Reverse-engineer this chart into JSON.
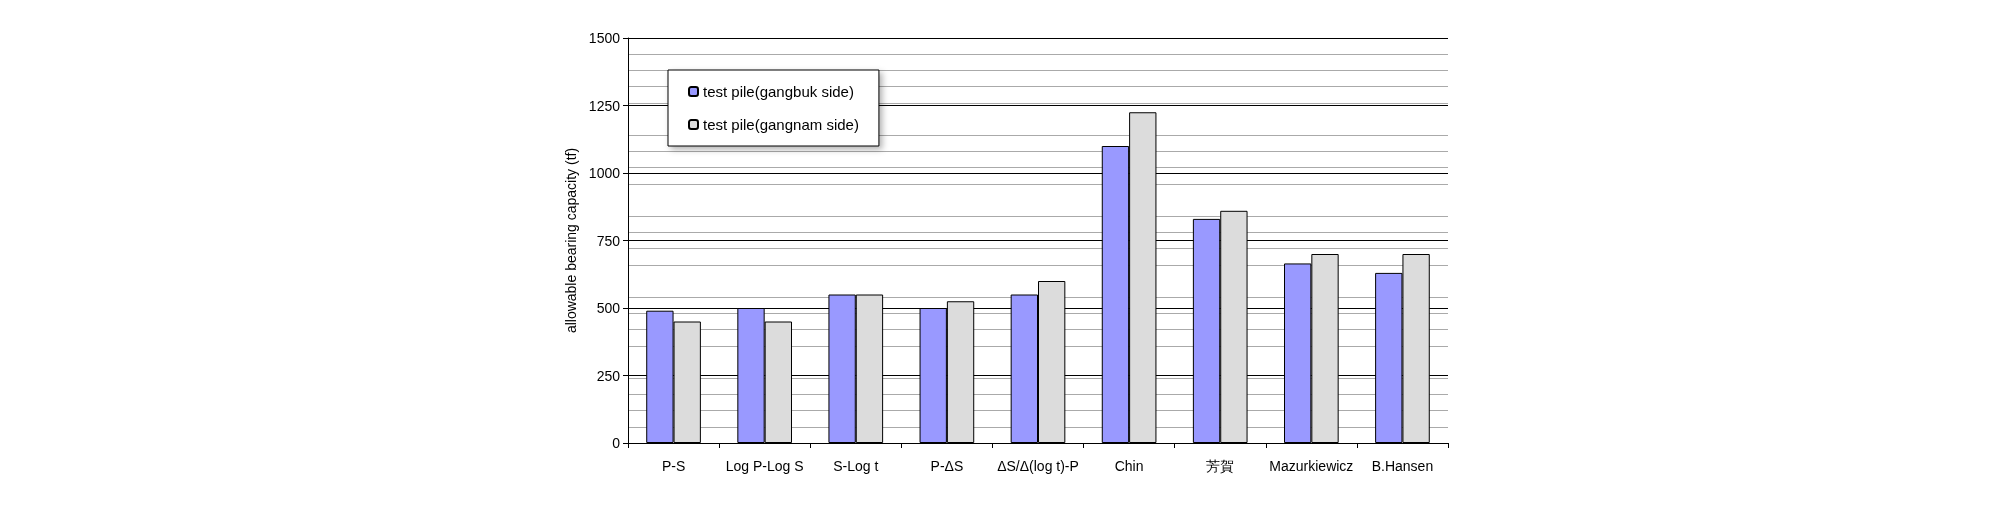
{
  "chart_data": {
    "type": "bar",
    "ylabel": "allowable bearing capacity (tf)",
    "categories": [
      "P-S",
      "Log P-Log S",
      "S-Log t",
      "P-ΔS",
      "ΔS/Δ(log t)-P",
      "Chin",
      "芳賀",
      "Mazurkiewicz",
      "B.Hansen"
    ],
    "series": [
      {
        "name": "test pile(gangbuk side)",
        "color": "#9999ff",
        "values": [
          490,
          500,
          550,
          500,
          550,
          1100,
          830,
          665,
          630
        ]
      },
      {
        "name": "test pile(gangnam side)",
        "color": "#dcdcdc",
        "values": [
          450,
          450,
          550,
          525,
          600,
          1225,
          860,
          700,
          700
        ]
      }
    ],
    "ylim": [
      0,
      1500
    ],
    "yticks": [
      0,
      250,
      500,
      750,
      1000,
      1250,
      1500
    ],
    "grid": "y",
    "legend": "top left"
  }
}
